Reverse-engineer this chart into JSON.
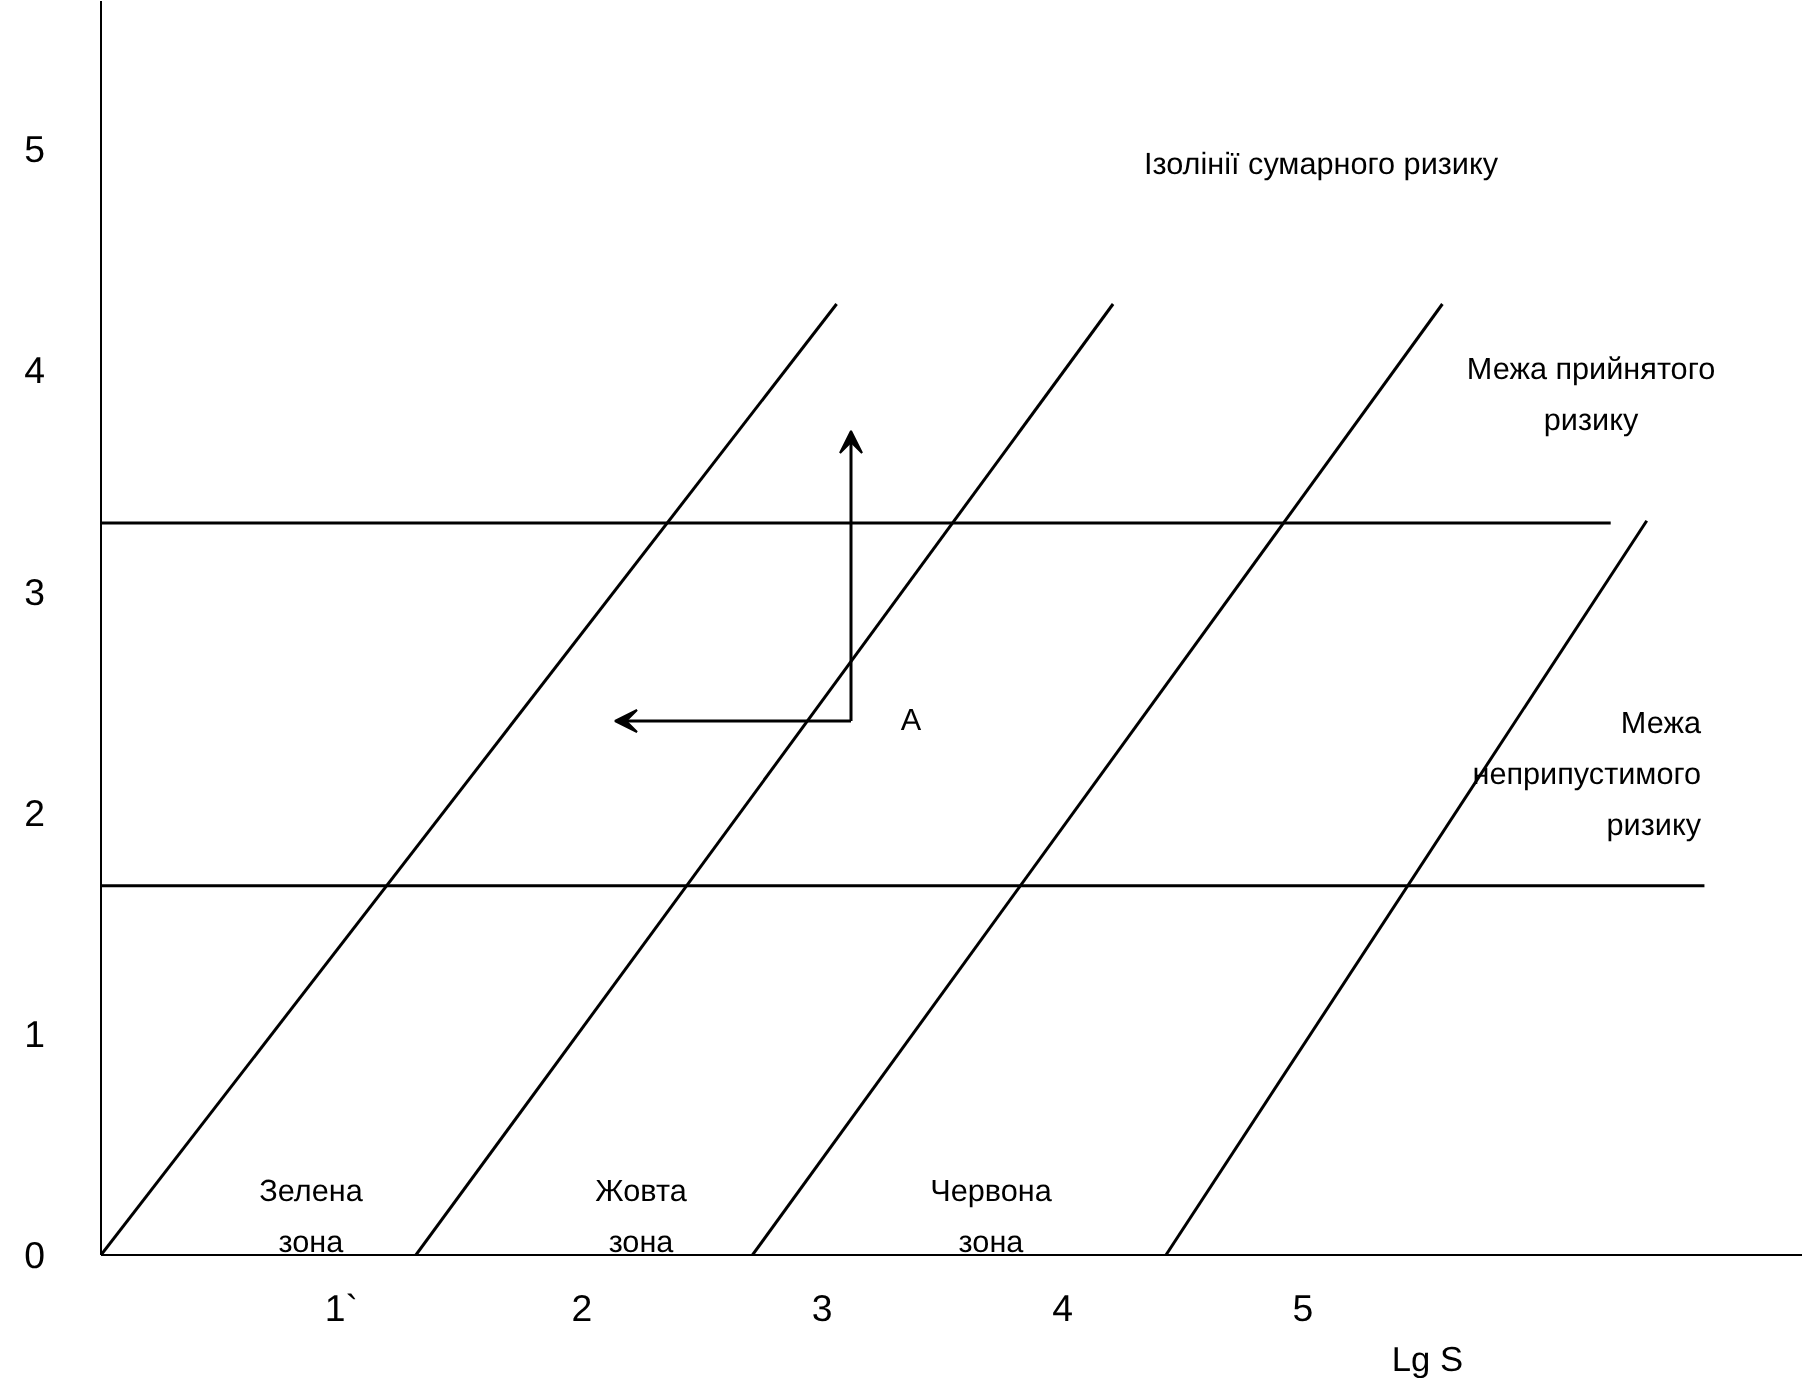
{
  "chart_data": {
    "type": "line",
    "xlabel": "Lg S",
    "xlim": [
      0,
      7.08
    ],
    "ylim": [
      0,
      5.67
    ],
    "xticks": [
      {
        "value": 1,
        "label": "1`"
      },
      2,
      3,
      4,
      5
    ],
    "yticks": [
      0,
      1,
      2,
      3,
      4,
      5
    ],
    "grid": false,
    "series": [
      {
        "color": "#000000",
        "x": [
          0,
          3.06
        ],
        "values": [
          0,
          4.3
        ]
      },
      {
        "color": "#000000",
        "x": [
          1.31,
          4.21
        ],
        "values": [
          0,
          4.3
        ]
      },
      {
        "color": "#000000",
        "x": [
          2.71,
          5.58
        ],
        "values": [
          0,
          4.3
        ]
      },
      {
        "color": "#000000",
        "x": [
          4.43,
          6.43
        ],
        "values": [
          0,
          3.32
        ]
      },
      {
        "color": "#000000",
        "x": [
          0,
          6.28
        ],
        "values": [
          3.31,
          3.31
        ]
      },
      {
        "color": "#000000",
        "x": [
          0,
          6.67
        ],
        "values": [
          1.67,
          1.67
        ]
      }
    ],
    "annotations": [
      "Ізолінії сумарного ризику",
      "Межа прийнятого\nризику",
      "Межа\nнеприпустимого\nризику",
      "A",
      "Зелена\nзона",
      "Жовта\nзона",
      "Червона\nзона"
    ]
  }
}
